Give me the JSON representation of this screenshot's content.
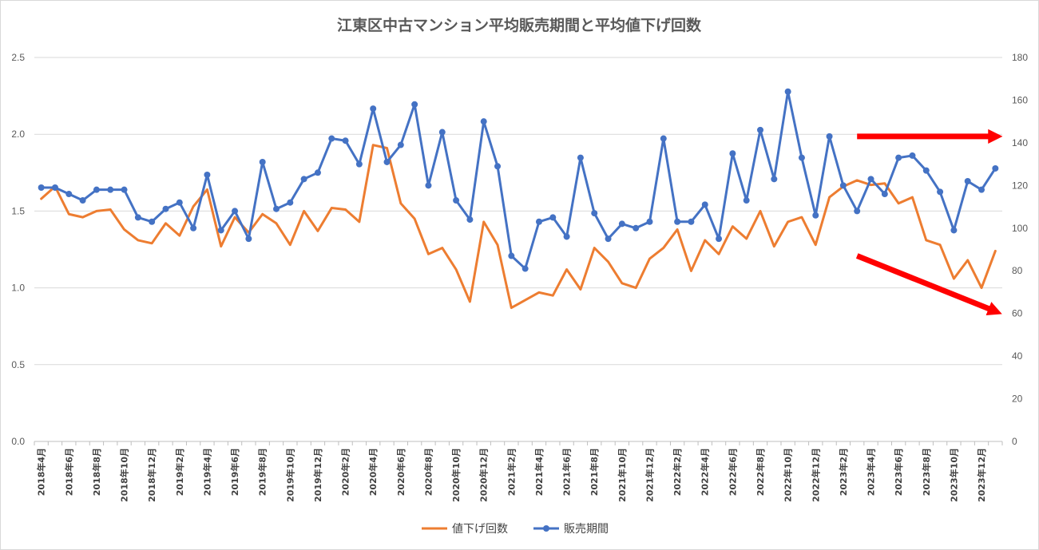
{
  "chart_data": {
    "type": "line",
    "title": "江東区中古マンション平均販売期間と平均値下げ回数",
    "x": [
      "2018年4月",
      "2018年5月",
      "2018年6月",
      "2018年7月",
      "2018年8月",
      "2018年9月",
      "2018年10月",
      "2018年11月",
      "2018年12月",
      "2019年1月",
      "2019年2月",
      "2019年3月",
      "2019年4月",
      "2019年5月",
      "2019年6月",
      "2019年7月",
      "2019年8月",
      "2019年9月",
      "2019年10月",
      "2019年11月",
      "2019年12月",
      "2020年1月",
      "2020年2月",
      "2020年3月",
      "2020年4月",
      "2020年5月",
      "2020年6月",
      "2020年7月",
      "2020年8月",
      "2020年9月",
      "2020年10月",
      "2020年11月",
      "2020年12月",
      "2021年1月",
      "2021年2月",
      "2021年3月",
      "2021年4月",
      "2021年5月",
      "2021年6月",
      "2021年7月",
      "2021年8月",
      "2021年9月",
      "2021年10月",
      "2021年11月",
      "2021年12月",
      "2022年1月",
      "2022年2月",
      "2022年3月",
      "2022年4月",
      "2022年5月",
      "2022年6月",
      "2022年7月",
      "2022年8月",
      "2022年9月",
      "2022年10月",
      "2022年11月",
      "2022年12月",
      "2023年1月",
      "2023年2月",
      "2023年3月",
      "2023年4月",
      "2023年5月",
      "2023年6月",
      "2023年7月",
      "2023年8月",
      "2023年9月",
      "2023年10月",
      "2023年11月",
      "2023年12月",
      "2024年1月"
    ],
    "x_tick_labels": [
      "2018年4月",
      "2018年6月",
      "2018年8月",
      "2018年10月",
      "2018年12月",
      "2019年2月",
      "2019年4月",
      "2019年6月",
      "2019年8月",
      "2019年10月",
      "2019年12月",
      "2020年2月",
      "2020年4月",
      "2020年6月",
      "2020年8月",
      "2020年10月",
      "2020年12月",
      "2021年2月",
      "2021年4月",
      "2021年6月",
      "2021年8月",
      "2021年10月",
      "2021年12月",
      "2022年2月",
      "2022年4月",
      "2022年6月",
      "2022年8月",
      "2022年10月",
      "2022年12月",
      "2023年2月",
      "2023年4月",
      "2023年6月",
      "2023年8月",
      "2023年10月",
      "2023年12月"
    ],
    "series": [
      {
        "name": "値下げ回数",
        "axis": "left",
        "color": "#ED7D31",
        "marker": "none",
        "values": [
          1.58,
          1.66,
          1.48,
          1.46,
          1.5,
          1.51,
          1.38,
          1.31,
          1.29,
          1.42,
          1.34,
          1.53,
          1.64,
          1.27,
          1.46,
          1.36,
          1.48,
          1.42,
          1.28,
          1.5,
          1.37,
          1.52,
          1.51,
          1.43,
          1.93,
          1.91,
          1.55,
          1.45,
          1.22,
          1.26,
          1.12,
          0.91,
          1.43,
          1.28,
          0.87,
          0.92,
          0.97,
          0.95,
          1.12,
          0.99,
          1.26,
          1.17,
          1.03,
          1.0,
          1.19,
          1.26,
          1.38,
          1.11,
          1.31,
          1.22,
          1.4,
          1.32,
          1.5,
          1.27,
          1.43,
          1.46,
          1.28,
          1.59,
          1.66,
          1.7,
          1.67,
          1.68,
          1.55,
          1.59,
          1.31,
          1.28,
          1.06,
          1.18,
          1.0,
          1.24
        ]
      },
      {
        "name": "販売期間",
        "axis": "right",
        "color": "#4472C4",
        "marker": "circle",
        "values": [
          119,
          119,
          116,
          113,
          118,
          118,
          118,
          105,
          103,
          109,
          112,
          100,
          125,
          99,
          108,
          95,
          131,
          109,
          112,
          123,
          126,
          142,
          141,
          130,
          156,
          131,
          139,
          158,
          120,
          145,
          113,
          104,
          150,
          129,
          87,
          81,
          103,
          105,
          96,
          133,
          107,
          95,
          102,
          100,
          103,
          142,
          103,
          103,
          111,
          95,
          135,
          113,
          146,
          123,
          164,
          133,
          106,
          143,
          120,
          108,
          123,
          116,
          133,
          134,
          127,
          117,
          99,
          122,
          118,
          128
        ]
      }
    ],
    "y_left": {
      "min": 0,
      "max": 2.5,
      "ticks": [
        "0.0",
        "0.5",
        "1.0",
        "1.5",
        "2.0",
        "2.5"
      ]
    },
    "y_right": {
      "min": 0,
      "max": 180,
      "ticks": [
        "0",
        "20",
        "40",
        "60",
        "80",
        "100",
        "120",
        "140",
        "160",
        "180"
      ]
    },
    "grid": true,
    "legend_position": "bottom",
    "annotations": [
      {
        "type": "arrow",
        "color": "#FF0000",
        "direction": "flat",
        "start": [
          "2023年3月",
          143
        ],
        "end": [
          "2024年1月",
          143
        ]
      },
      {
        "type": "arrow",
        "color": "#FF0000",
        "direction": "down",
        "start": [
          "2023年3月",
          87
        ],
        "end": [
          "2024年1月",
          61
        ]
      }
    ]
  }
}
